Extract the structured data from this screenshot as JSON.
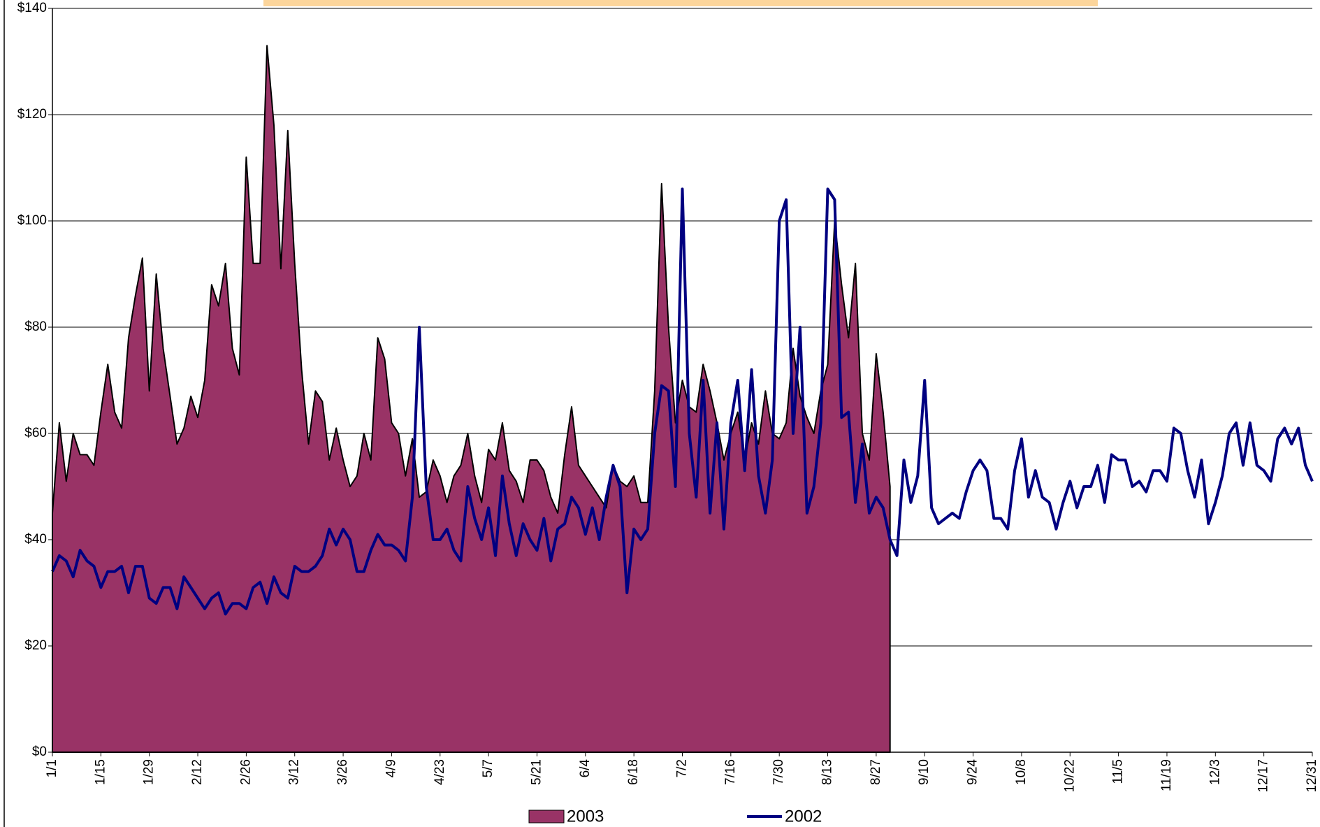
{
  "chart_data": {
    "type": "area",
    "categories": [
      "1/1",
      null,
      null,
      null,
      null,
      null,
      null,
      "1/15",
      null,
      null,
      null,
      null,
      null,
      null,
      "1/29",
      null,
      null,
      null,
      null,
      null,
      null,
      "2/12",
      null,
      null,
      null,
      null,
      null,
      null,
      "2/26",
      null,
      null,
      null,
      null,
      null,
      null,
      "3/12",
      null,
      null,
      null,
      null,
      null,
      null,
      "3/26",
      null,
      null,
      null,
      null,
      null,
      null,
      "4/9",
      null,
      null,
      null,
      null,
      null,
      null,
      "4/23",
      null,
      null,
      null,
      null,
      null,
      null,
      "5/7",
      null,
      null,
      null,
      null,
      null,
      null,
      "5/21",
      null,
      null,
      null,
      null,
      null,
      null,
      "6/4",
      null,
      null,
      null,
      null,
      null,
      null,
      "6/18",
      null,
      null,
      null,
      null,
      null,
      null,
      "7/2",
      null,
      null,
      null,
      null,
      null,
      null,
      "7/16",
      null,
      null,
      null,
      null,
      null,
      null,
      "7/30",
      null,
      null,
      null,
      null,
      null,
      null,
      "8/13",
      null,
      null,
      null,
      null,
      null,
      null,
      "8/27",
      null,
      null,
      null,
      null,
      null,
      null,
      "9/10",
      null,
      null,
      null,
      null,
      null,
      null,
      "9/24",
      null,
      null,
      null,
      null,
      null,
      null,
      "10/8",
      null,
      null,
      null,
      null,
      null,
      null,
      "10/22",
      null,
      null,
      null,
      null,
      null,
      null,
      "11/5",
      null,
      null,
      null,
      null,
      null,
      null,
      "11/19",
      null,
      null,
      null,
      null,
      null,
      null,
      "12/3",
      null,
      null,
      null,
      null,
      null,
      null,
      "12/17",
      null,
      null,
      null,
      null,
      null,
      null,
      "12/31"
    ],
    "series": [
      {
        "name": "2003",
        "style": "area",
        "color": "#993366",
        "values": [
          45,
          62,
          51,
          60,
          56,
          56,
          54,
          64,
          73,
          64,
          61,
          78,
          86,
          93,
          68,
          90,
          76,
          67,
          58,
          61,
          67,
          63,
          70,
          88,
          84,
          92,
          76,
          71,
          112,
          92,
          92,
          133,
          118,
          91,
          117,
          92,
          72,
          58,
          68,
          66,
          55,
          61,
          55,
          50,
          52,
          60,
          55,
          78,
          74,
          62,
          60,
          52,
          59,
          48,
          49,
          55,
          52,
          47,
          52,
          54,
          60,
          52,
          47,
          57,
          55,
          62,
          53,
          51,
          47,
          55,
          55,
          53,
          48,
          45,
          56,
          65,
          54,
          52,
          50,
          48,
          46,
          54,
          51,
          50,
          52,
          47,
          47,
          68,
          107,
          80,
          62,
          70,
          65,
          64,
          73,
          68,
          62,
          55,
          60,
          64,
          55,
          62,
          58,
          68,
          60,
          59,
          62,
          76,
          67,
          63,
          60,
          68,
          73,
          100,
          88,
          78,
          92,
          60,
          55,
          75,
          64,
          50,
          null,
          null,
          null,
          null,
          null,
          null,
          null,
          null,
          null,
          null,
          null,
          null,
          null,
          null,
          null,
          null,
          null,
          null,
          null,
          null,
          null,
          null,
          null,
          null,
          null,
          null,
          null,
          null,
          null,
          null,
          null,
          null,
          null,
          null,
          null,
          null,
          null,
          null,
          null,
          null,
          null,
          null,
          null,
          null,
          null,
          null,
          null,
          null,
          null,
          null,
          null,
          null,
          null,
          null,
          null,
          null,
          null,
          null,
          null,
          null,
          null
        ]
      },
      {
        "name": "2002",
        "style": "line",
        "color": "#000080",
        "values": [
          34,
          37,
          36,
          33,
          38,
          36,
          35,
          31,
          34,
          34,
          35,
          30,
          35,
          35,
          29,
          28,
          31,
          31,
          27,
          33,
          31,
          29,
          27,
          29,
          30,
          26,
          28,
          28,
          27,
          31,
          32,
          28,
          33,
          30,
          29,
          35,
          34,
          34,
          35,
          37,
          42,
          39,
          42,
          40,
          34,
          34,
          38,
          41,
          39,
          39,
          38,
          36,
          48,
          80,
          50,
          40,
          40,
          42,
          38,
          36,
          50,
          44,
          40,
          46,
          37,
          52,
          43,
          37,
          43,
          40,
          38,
          44,
          36,
          42,
          43,
          48,
          46,
          41,
          46,
          40,
          48,
          54,
          50,
          30,
          42,
          40,
          42,
          60,
          69,
          68,
          50,
          106,
          60,
          48,
          70,
          45,
          62,
          42,
          62,
          70,
          53,
          72,
          52,
          45,
          55,
          100,
          104,
          60,
          80,
          45,
          50,
          62,
          106,
          104,
          63,
          64,
          47,
          58,
          45,
          48,
          46,
          40,
          37,
          55,
          47,
          52,
          70,
          46,
          43,
          44,
          45,
          44,
          49,
          53,
          55,
          53,
          44,
          44,
          42,
          53,
          59,
          48,
          53,
          48,
          47,
          42,
          47,
          51,
          46,
          50,
          50,
          54,
          47,
          56,
          55,
          55,
          50,
          51,
          49,
          53,
          53,
          51,
          61,
          60,
          53,
          48,
          55,
          43,
          47,
          52,
          60,
          62,
          54,
          62,
          54,
          53,
          51,
          59,
          61,
          58,
          61,
          54,
          51
        ]
      }
    ],
    "ylim": [
      0,
      140
    ],
    "yticks": [
      {
        "value": 0,
        "label": "$0"
      },
      {
        "value": 20,
        "label": "$20"
      },
      {
        "value": 40,
        "label": "$40"
      },
      {
        "value": 60,
        "label": "$60"
      },
      {
        "value": 80,
        "label": "$80"
      },
      {
        "value": 100,
        "label": "$100"
      },
      {
        "value": 120,
        "label": "$120"
      },
      {
        "value": 140,
        "label": "$140"
      }
    ],
    "grid": true
  }
}
